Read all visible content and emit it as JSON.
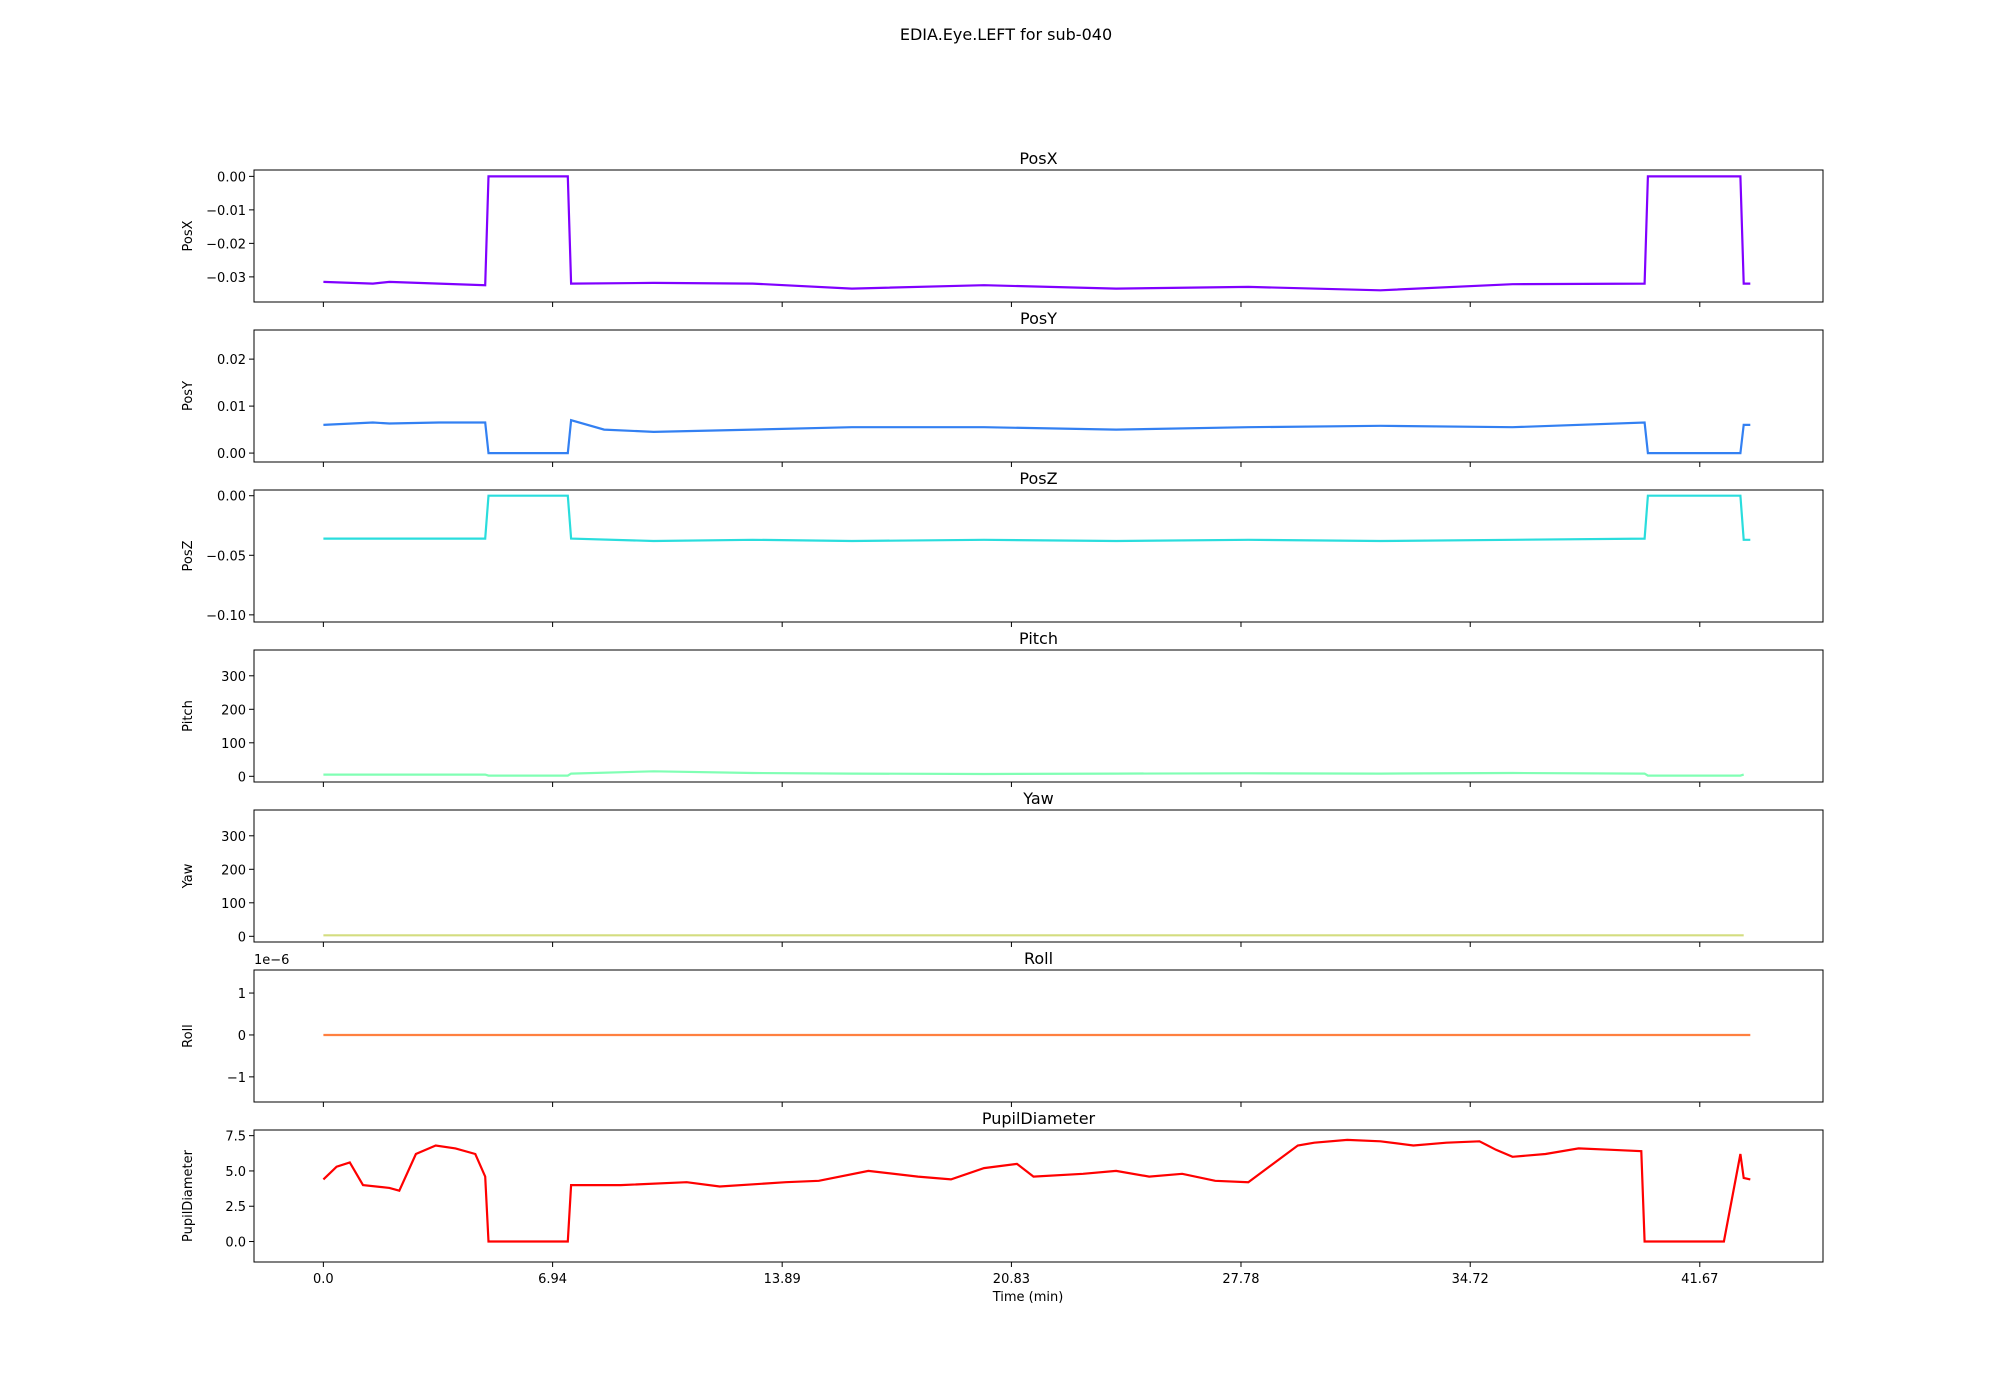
{
  "figure": {
    "title": "EDIA.Eye.LEFT for sub-040",
    "xlabel": "Time (min)",
    "xticks": [
      0.0,
      6.94,
      13.89,
      20.83,
      27.78,
      34.72,
      41.67
    ],
    "xtick_labels": [
      "0.0",
      "6.94",
      "13.89",
      "20.83",
      "27.78",
      "34.72",
      "41.67"
    ],
    "xlim": [
      -2.1,
      45.4
    ]
  },
  "chart_data": [
    {
      "type": "line",
      "title": "PosX",
      "ylabel": "PosX",
      "color": "#8000ff",
      "ylim": [
        -0.0375,
        0.0019
      ],
      "yticks": [
        0.0,
        -0.01,
        -0.02,
        -0.03
      ],
      "ytick_labels": [
        "0.00",
        "−0.01",
        "−0.02",
        "−0.03"
      ],
      "offset_text": "",
      "series": [
        {
          "x": [
            0.0,
            1.5,
            2.0,
            3.5,
            4.9,
            5.0,
            7.4,
            7.5,
            10.0,
            13.0,
            16.0,
            20.0,
            24.0,
            28.0,
            32.0,
            36.0,
            40.0,
            40.1,
            42.9,
            43.0,
            43.2
          ],
          "y": [
            -0.0315,
            -0.032,
            -0.0315,
            -0.032,
            -0.0325,
            0.0,
            0.0,
            -0.032,
            -0.0318,
            -0.032,
            -0.0335,
            -0.0325,
            -0.0335,
            -0.033,
            -0.034,
            -0.0322,
            -0.032,
            0.0,
            0.0,
            -0.032,
            -0.032
          ]
        }
      ]
    },
    {
      "type": "line",
      "title": "PosY",
      "ylabel": "PosY",
      "color": "#3380f2",
      "ylim": [
        -0.0019,
        0.0262
      ],
      "yticks": [
        0.0,
        0.01,
        0.02
      ],
      "ytick_labels": [
        "0.00",
        "0.01",
        "0.02"
      ],
      "offset_text": "",
      "series": [
        {
          "x": [
            0.0,
            1.5,
            2.0,
            3.5,
            4.9,
            5.0,
            7.4,
            7.5,
            8.5,
            10.0,
            13.0,
            16.0,
            20.0,
            24.0,
            28.0,
            32.0,
            36.0,
            40.0,
            40.1,
            42.9,
            43.0,
            43.2
          ],
          "y": [
            0.006,
            0.0065,
            0.0063,
            0.0065,
            0.0065,
            0.0,
            0.0,
            0.007,
            0.005,
            0.0045,
            0.005,
            0.0055,
            0.0055,
            0.005,
            0.0055,
            0.0058,
            0.0055,
            0.0065,
            0.0,
            0.0,
            0.006,
            0.006
          ]
        }
      ]
    },
    {
      "type": "line",
      "title": "PosZ",
      "ylabel": "PosZ",
      "color": "#2adddd",
      "ylim": [
        -0.106,
        0.0048
      ],
      "yticks": [
        0.0,
        -0.05,
        -0.1
      ],
      "ytick_labels": [
        "0.00",
        "−0.05",
        "−0.10"
      ],
      "offset_text": "",
      "series": [
        {
          "x": [
            0.0,
            1.5,
            2.0,
            3.5,
            4.9,
            5.0,
            7.4,
            7.5,
            10.0,
            13.0,
            16.0,
            20.0,
            24.0,
            28.0,
            32.0,
            36.0,
            40.0,
            40.1,
            42.9,
            43.0,
            43.2
          ],
          "y": [
            -0.036,
            -0.036,
            -0.036,
            -0.036,
            -0.036,
            0.0,
            0.0,
            -0.036,
            -0.038,
            -0.037,
            -0.038,
            -0.037,
            -0.038,
            -0.037,
            -0.038,
            -0.037,
            -0.036,
            0.0,
            0.0,
            -0.037,
            -0.037
          ]
        }
      ]
    },
    {
      "type": "line",
      "title": "Pitch",
      "ylabel": "Pitch",
      "color": "#80ffb4",
      "ylim": [
        -17,
        377
      ],
      "yticks": [
        0,
        100,
        200,
        300
      ],
      "ytick_labels": [
        "0",
        "100",
        "200",
        "300"
      ],
      "offset_text": "",
      "series": [
        {
          "x": [
            0.0,
            4.9,
            5.0,
            7.4,
            7.5,
            10.0,
            13.0,
            16.0,
            20.0,
            24.0,
            28.0,
            32.0,
            36.0,
            40.0,
            40.1,
            42.9,
            43.0
          ],
          "y": [
            5,
            5,
            2,
            2,
            8,
            15,
            10,
            8,
            7,
            8,
            9,
            8,
            10,
            8,
            2,
            2,
            5
          ]
        }
      ]
    },
    {
      "type": "line",
      "title": "Yaw",
      "ylabel": "Yaw",
      "color": "#d4dd80",
      "ylim": [
        -17,
        377
      ],
      "yticks": [
        0,
        100,
        200,
        300
      ],
      "ytick_labels": [
        "0",
        "100",
        "200",
        "300"
      ],
      "offset_text": "",
      "series": [
        {
          "x": [
            0.0,
            4.9,
            5.0,
            7.4,
            7.5,
            10.0,
            13.0,
            16.0,
            20.0,
            24.0,
            28.0,
            32.0,
            36.0,
            40.0,
            40.1,
            42.9,
            43.0
          ],
          "y": [
            3,
            3,
            3,
            3,
            3,
            3,
            3,
            3,
            3,
            3,
            3,
            3,
            3,
            3,
            3,
            3,
            3
          ]
        }
      ]
    },
    {
      "type": "line",
      "title": "Roll",
      "ylabel": "Roll",
      "color": "#ff8040",
      "ylim": [
        -1.6,
        1.55
      ],
      "yticks": [
        1,
        0,
        -1
      ],
      "ytick_labels": [
        "1",
        "0",
        "−1"
      ],
      "offset_text": "1e−6",
      "series": [
        {
          "x": [
            0.0,
            5.0,
            7.4,
            43.2
          ],
          "y": [
            0.0,
            0.0,
            0.0,
            0.0
          ]
        }
      ]
    },
    {
      "type": "line",
      "title": "PupilDiameter",
      "ylabel": "PupilDiameter",
      "color": "#ff0000",
      "ylim": [
        -1.45,
        7.9
      ],
      "yticks": [
        0.0,
        2.5,
        5.0,
        7.5
      ],
      "ytick_labels": [
        "0.0",
        "2.5",
        "5.0",
        "7.5"
      ],
      "offset_text": "",
      "series": [
        {
          "x": [
            0.0,
            0.4,
            0.8,
            1.2,
            2.0,
            2.3,
            2.8,
            3.4,
            4.0,
            4.6,
            4.9,
            5.0,
            7.4,
            7.5,
            9.0,
            11.0,
            12.0,
            14.0,
            15.0,
            16.5,
            18.0,
            19.0,
            20.0,
            21.0,
            21.5,
            23.0,
            24.0,
            25.0,
            26.0,
            27.0,
            28.0,
            29.5,
            30.0,
            31.0,
            32.0,
            33.0,
            34.0,
            35.0,
            35.5,
            36.0,
            37.0,
            38.0,
            39.0,
            39.9,
            40.0,
            42.4,
            42.9,
            43.0,
            43.2
          ],
          "y": [
            4.4,
            5.3,
            5.6,
            4.0,
            3.8,
            3.6,
            6.2,
            6.8,
            6.6,
            6.2,
            4.6,
            0.0,
            0.0,
            4.0,
            4.0,
            4.2,
            3.9,
            4.2,
            4.3,
            5.0,
            4.6,
            4.4,
            5.2,
            5.5,
            4.6,
            4.8,
            5.0,
            4.6,
            4.8,
            4.3,
            4.2,
            6.8,
            7.0,
            7.2,
            7.1,
            6.8,
            7.0,
            7.1,
            6.5,
            6.0,
            6.2,
            6.6,
            6.5,
            6.4,
            0.0,
            0.0,
            6.2,
            4.5,
            4.4
          ]
        }
      ]
    }
  ]
}
